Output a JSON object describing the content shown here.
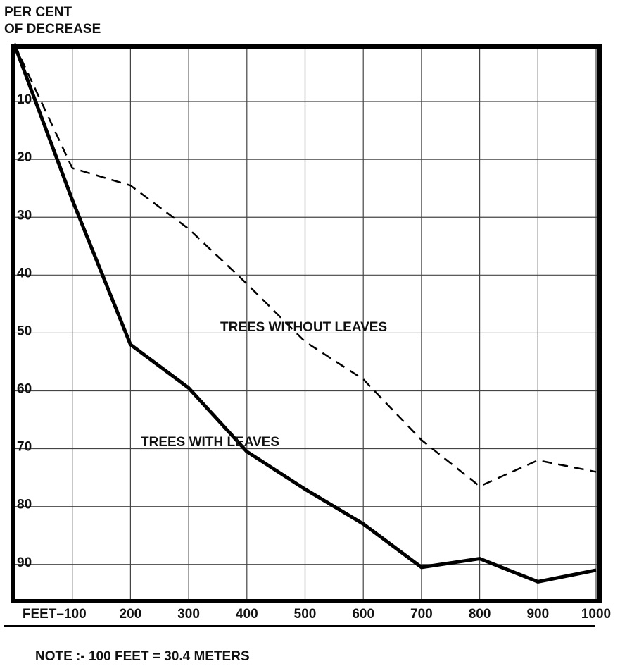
{
  "chart_data": {
    "type": "line",
    "y_label": [
      "PER CENT",
      "OF DECREASE"
    ],
    "note": "NOTE :- 100 FEET = 30.4 METERS",
    "annotations": [
      "TREES WITHOUT LEAVES",
      "TREES WITH LEAVES"
    ],
    "x": [
      0,
      100,
      200,
      300,
      400,
      500,
      600,
      700,
      800,
      900,
      1000
    ],
    "series": [
      {
        "name": "TREES WITH LEAVES",
        "color": "#000000",
        "line_style": "solid",
        "values": [
          0,
          27,
          52,
          59.5,
          70.5,
          77,
          83,
          90.5,
          89,
          93,
          91
        ]
      },
      {
        "name": "TREES WITHOUT LEAVES",
        "color": "#000000",
        "line_style": "dashed",
        "values": [
          0,
          21.5,
          24.5,
          32,
          41.5,
          51.5,
          58,
          68.5,
          76.5,
          72,
          74
        ]
      }
    ],
    "xlim": [
      0,
      1000
    ],
    "ylim": [
      0,
      96
    ],
    "y_inverted": true,
    "xticks": [
      {
        "value": 100,
        "label": "FEET–100"
      },
      200,
      300,
      400,
      500,
      600,
      700,
      800,
      900,
      1000
    ],
    "yticks": [
      10,
      20,
      30,
      40,
      50,
      60,
      70,
      80,
      90
    ],
    "grid": true
  }
}
